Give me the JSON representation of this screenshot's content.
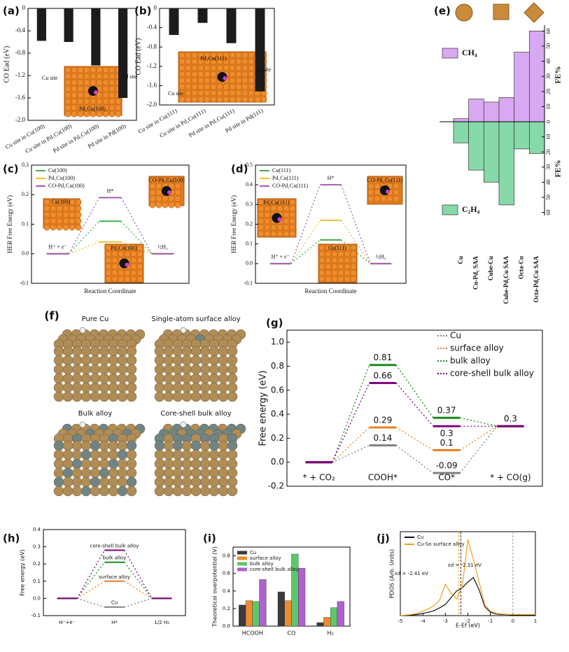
{
  "chart_data": [
    {
      "type": "bar",
      "panel": "(a)",
      "ylabel": "CO Ead (eV)",
      "categories": [
        "Cu site in Cu(100)",
        "Cu site in Pd₁Cu(100)",
        "Pd site in Pd₁Cu(100)",
        "Pd site in Pd(100)"
      ],
      "values": [
        -0.58,
        -0.6,
        -1.02,
        -1.6
      ],
      "color": "#1c1c1c",
      "ylim": [
        -2,
        0
      ],
      "yticks": [
        0,
        -0.4,
        -0.8,
        -1.2,
        -1.6,
        {
          "value": -2,
          "label": "-2.0"
        }
      ],
      "annotations": [
        "Cu site",
        "Pd site",
        "Pd₁Cu(100)"
      ]
    },
    {
      "type": "bar",
      "panel": "(b)",
      "ylabel": "CO Ead (eV)",
      "categories": [
        "Cu site in Cu(111)",
        "Cu site in Pd₁Cu(111)",
        "Pd site in Pd₁Cu(111)",
        "Pd site in Pd(111)"
      ],
      "values": [
        -0.55,
        -0.3,
        -0.72,
        -1.72
      ],
      "color": "#1c1c1c",
      "ylim": [
        -2,
        0
      ],
      "yticks": [
        0,
        -0.4,
        -0.8,
        -1.2,
        -1.6,
        {
          "value": -2,
          "label": "-2.0"
        }
      ],
      "annotations": [
        "Pd₁Cu(111)",
        "Cu site",
        "Pd site"
      ]
    },
    {
      "type": "mirror-bar",
      "panel": "(e)",
      "categories": [
        "Cu",
        "Cu-Pd₁ SAA",
        "Cube-Cu",
        "Cube-Pd₁Cu SAA",
        "Octa-Cu",
        "Octa-Pd₁Cu SAA"
      ],
      "series": [
        {
          "name": "CH₄",
          "color": "#d9a8f2",
          "values": [
            2,
            15,
            13,
            16,
            46,
            60
          ]
        },
        {
          "name": "C₂H₄",
          "color": "#86d9a9",
          "axis": "y2",
          "values": [
            14,
            32,
            40,
            55,
            18,
            21
          ]
        }
      ],
      "ylabel": "FE%",
      "y2label": "FE%",
      "ylim": [
        0,
        62
      ],
      "yticks": [
        0,
        10,
        20,
        30,
        40,
        50,
        60
      ],
      "y2lim": [
        0,
        62
      ],
      "y2ticks": [
        10,
        20,
        30,
        40,
        50,
        60
      ],
      "legend": "left"
    },
    {
      "type": "levels",
      "panel": "(c)",
      "ylabel": "HER Free Energy (eV)",
      "xlabel": "Reaction Coordinate",
      "categories": [
        "H⁺ + e⁻",
        "H*",
        "½H₂"
      ],
      "series": [
        {
          "name": "Cu(100)",
          "color": "#3cb44b",
          "values": [
            0,
            0.11,
            0
          ]
        },
        {
          "name": "Pd₁Cu(100)",
          "color": "#f0c030",
          "values": [
            0,
            0.04,
            0
          ]
        },
        {
          "name": "CO-Pd₁Cu(100)",
          "color": "#a35cb3",
          "values": [
            0,
            0.19,
            0
          ]
        }
      ],
      "ylim": [
        -0.1,
        0.3
      ],
      "yticks": [
        -0.1,
        {
          "value": 0,
          "label": "0.0"
        },
        0.1,
        0.2,
        0.3
      ],
      "legend": "upper left",
      "annotations": [
        "Cu(100)",
        "CO-Pd₁Cu(100)",
        "Pd₁Cu(100)"
      ]
    },
    {
      "type": "levels",
      "panel": "(d)",
      "ylabel": "HER Free Energy (eV)",
      "xlabel": "Reaction Coordinate",
      "categories": [
        "H⁺ + e⁻",
        "H*",
        "½H₂"
      ],
      "series": [
        {
          "name": "Cu(111)",
          "color": "#3cb44b",
          "values": [
            0,
            0.12,
            0
          ]
        },
        {
          "name": "Pd₁Cu(111)",
          "color": "#f0c030",
          "values": [
            0,
            0.22,
            0
          ]
        },
        {
          "name": "CO-Pd₁Cu(111)",
          "color": "#a35cb3",
          "values": [
            0,
            0.4,
            0
          ]
        }
      ],
      "ylim": [
        -0.1,
        0.5
      ],
      "yticks": [
        -0.1,
        {
          "value": 0,
          "label": "0.0"
        },
        0.1,
        0.2,
        0.3,
        0.4,
        0.5
      ],
      "legend": "upper left",
      "annotations": [
        "Pd₁Cu(111)",
        "CO-Pd₁Cu(111)",
        "Cu(111)"
      ]
    },
    {
      "type": "levels",
      "panel": "(g)",
      "ylabel": "Free energy (eV)",
      "categories": [
        "* + CO₂",
        "COOH*",
        "CO*",
        "* + CO(g)"
      ],
      "series": [
        {
          "name": "Cu",
          "color": "#808080",
          "values": [
            0,
            0.14,
            -0.09,
            0.3
          ],
          "value_labels": [
            null,
            "0.14",
            "-0.09",
            "0.3"
          ]
        },
        {
          "name": "surface alloy",
          "color": "#f07f1e",
          "values": [
            0,
            0.29,
            0.1,
            0.3
          ],
          "value_labels": [
            null,
            "0.29",
            "0.1",
            null
          ]
        },
        {
          "name": "bulk alloy",
          "color": "#1a8a1a",
          "values": [
            0,
            0.81,
            0.37,
            0.3
          ],
          "value_labels": [
            null,
            "0.81",
            "0.37",
            null
          ]
        },
        {
          "name": "core-shell bulk alloy",
          "color": "#800080",
          "values": [
            0,
            0.66,
            0.3,
            0.3
          ],
          "value_labels": [
            null,
            "0.66",
            "0.3",
            null
          ]
        }
      ],
      "ylim": [
        -0.2,
        1.1
      ],
      "yticks": [
        -0.2,
        {
          "value": 0,
          "label": "0.0"
        },
        0.2,
        0.4,
        0.6,
        0.8,
        {
          "value": 1,
          "label": "1.0"
        }
      ],
      "legend": "upper right"
    },
    {
      "type": "levels",
      "panel": "(h)",
      "ylabel": "Free energy (eV)",
      "categories": [
        "H⁺+e⁻",
        "H*",
        "1/2 H₂"
      ],
      "series": [
        {
          "name": "Cu",
          "color": "#808080",
          "values": [
            0,
            -0.05,
            0
          ]
        },
        {
          "name": "surface alloy",
          "color": "#f07f1e",
          "values": [
            0,
            0.1,
            0
          ]
        },
        {
          "name": "bulk alloy",
          "color": "#1a8a1a",
          "values": [
            0,
            0.21,
            0
          ]
        },
        {
          "name": "core-shell bulk alloy",
          "color": "#800080",
          "values": [
            0,
            0.28,
            0
          ]
        }
      ],
      "ylim": [
        -0.1,
        0.4
      ],
      "yticks": [
        -0.1,
        {
          "value": 0,
          "label": "0.0"
        },
        0.1,
        0.2,
        0.3,
        0.4
      ],
      "legend": "inline"
    },
    {
      "type": "grouped-bar",
      "panel": "(i)",
      "ylabel": "Theoretical overpotential (V)",
      "categories": [
        "HCOOH",
        "CO",
        "H₂"
      ],
      "series": [
        {
          "name": "Cu",
          "color": "#3a3a3a",
          "values": [
            0.24,
            0.39,
            0.04
          ]
        },
        {
          "name": "surface alloy",
          "color": "#f08a30",
          "values": [
            0.29,
            0.29,
            0.1
          ]
        },
        {
          "name": "bulk alloy",
          "color": "#5cc86a",
          "values": [
            0.28,
            0.82,
            0.21
          ]
        },
        {
          "name": "core-shell bulk alloy",
          "color": "#b060d0",
          "values": [
            0.53,
            0.66,
            0.28
          ]
        }
      ],
      "ylim": [
        0,
        0.9
      ],
      "yticks": [
        {
          "value": 0,
          "label": "0.0"
        },
        0.2,
        0.4,
        0.6,
        0.8
      ],
      "legend": "upper left"
    },
    {
      "type": "line",
      "panel": "(j)",
      "xlabel": "E-Ef (eV)",
      "ylabel": "PDOS (Arb. Units)",
      "x": [
        -5,
        -4.75,
        -4.5,
        -4.25,
        -4,
        -3.75,
        -3.5,
        -3.25,
        -3,
        -2.75,
        -2.5,
        -2.25,
        -2,
        -1.75,
        -1.5,
        -1.25,
        -1,
        -0.75,
        -0.5,
        -0.25,
        0,
        0.25,
        0.5,
        0.75,
        1
      ],
      "series": [
        {
          "name": "Cu",
          "color": "#111111",
          "values": [
            0,
            0,
            0.05,
            0.1,
            0.2,
            0.3,
            0.45,
            0.7,
            1.0,
            1.6,
            2.2,
            2.5,
            3.0,
            3.4,
            2.3,
            0.8,
            0.3,
            0.15,
            0.1,
            0.08,
            0.06,
            0.05,
            0.05,
            0.05,
            0.05
          ]
        },
        {
          "name": "Cu-Sn surface alloy",
          "color": "#f0a020",
          "values": [
            0,
            0.05,
            0.1,
            0.2,
            0.4,
            0.6,
            0.9,
            1.4,
            2.8,
            2.0,
            1.5,
            2.6,
            6.8,
            5.0,
            3.0,
            1.0,
            0.4,
            0.2,
            0.15,
            0.1,
            0.1,
            0.1,
            0.1,
            0.1,
            0.1
          ]
        }
      ],
      "xlim": [
        -5,
        1
      ],
      "xticks": [
        -5,
        -4,
        -3,
        -2,
        -1,
        0,
        1
      ],
      "ylim": [
        0,
        7.5
      ],
      "legend": "upper left",
      "vlines": [
        {
          "x": -2.41,
          "color": "#f0a020",
          "label": "εd = -2.41 eV"
        },
        {
          "x": -2.31,
          "color": "#222222",
          "label": "εd = -2.31 eV"
        },
        {
          "x": 0,
          "color": "#999999"
        }
      ]
    }
  ],
  "images": {
    "panel": "(f)",
    "labels": [
      "Pure Cu",
      "Single-atom surface alloy",
      "Bulk alloy",
      "Core-shell bulk alloy"
    ]
  }
}
